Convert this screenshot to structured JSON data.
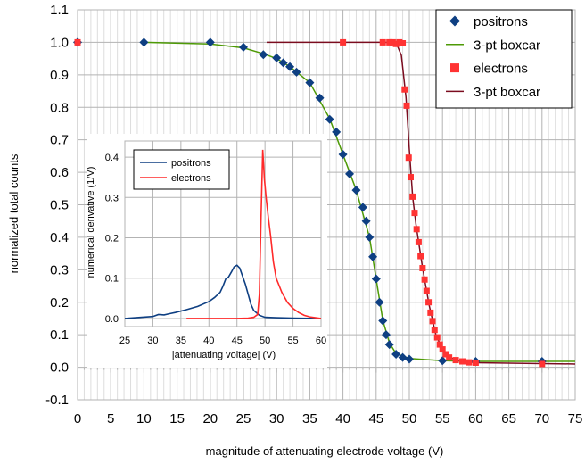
{
  "chart_data": [
    {
      "type": "scatter",
      "xlabel": "magnitude of attenuating electrode voltage (V)",
      "ylabel": "normalized total counts",
      "xlim": [
        0,
        75
      ],
      "ylim": [
        -0.1,
        1.1
      ],
      "xticks": [
        "0",
        "5",
        "10",
        "15",
        "20",
        "25",
        "30",
        "35",
        "40",
        "45",
        "50",
        "55",
        "60",
        "65",
        "70",
        "75"
      ],
      "yticks": [
        "-0.1",
        "0.0",
        "0.1",
        "0.2",
        "0.3",
        "0.4",
        "0.5",
        "0.6",
        "0.7",
        "0.8",
        "0.9",
        "1.0",
        "1.1"
      ],
      "grid": true,
      "legend_position": "top-right",
      "series": [
        {
          "name": "positrons",
          "marker": "diamond",
          "color": "#0e3f82",
          "x": [
            0,
            10,
            20,
            25,
            28,
            30,
            31,
            32,
            33,
            35,
            36.5,
            38,
            39,
            40,
            41,
            42,
            43,
            43.5,
            44,
            44.5,
            45,
            45.5,
            46,
            46.5,
            47,
            48,
            49,
            50,
            55,
            60,
            70
          ],
          "y": [
            1.0,
            1.0,
            1.0,
            0.985,
            0.962,
            0.952,
            0.937,
            0.925,
            0.908,
            0.876,
            0.829,
            0.763,
            0.724,
            0.655,
            0.595,
            0.545,
            0.492,
            0.45,
            0.4,
            0.34,
            0.272,
            0.2,
            0.143,
            0.1,
            0.07,
            0.04,
            0.03,
            0.025,
            0.02,
            0.018,
            0.018
          ]
        },
        {
          "name": "3-pt boxcar",
          "style": "line",
          "color": "#4e9a06",
          "x": [
            10,
            20,
            25,
            28,
            30,
            32,
            35,
            38,
            40,
            42,
            44,
            45,
            46,
            47,
            48,
            50,
            55,
            60,
            75
          ],
          "y": [
            1.0,
            0.995,
            0.983,
            0.965,
            0.95,
            0.925,
            0.876,
            0.765,
            0.655,
            0.545,
            0.4,
            0.272,
            0.145,
            0.075,
            0.042,
            0.027,
            0.02,
            0.018,
            0.018
          ]
        },
        {
          "name": "electrons",
          "marker": "square",
          "color": "#ff3333",
          "x": [
            0,
            40,
            46,
            47,
            47.5,
            48,
            48.5,
            49,
            49.3,
            49.6,
            49.9,
            50.2,
            50.5,
            50.8,
            51.1,
            51.4,
            51.7,
            52,
            52.3,
            52.6,
            52.9,
            53.2,
            53.5,
            53.8,
            54.2,
            54.6,
            55,
            55.5,
            56,
            57,
            58,
            59,
            60,
            70
          ],
          "y": [
            1.0,
            1.0,
            1.0,
            1.0,
            1.0,
            0.995,
            1.0,
            0.997,
            0.855,
            0.805,
            0.645,
            0.585,
            0.525,
            0.475,
            0.425,
            0.385,
            0.342,
            0.305,
            0.27,
            0.235,
            0.2,
            0.168,
            0.142,
            0.115,
            0.092,
            0.07,
            0.055,
            0.04,
            0.03,
            0.022,
            0.018,
            0.015,
            0.014,
            0.01
          ]
        },
        {
          "name": "3-pt boxcar",
          "style": "line",
          "color": "#7b0c1f",
          "x": [
            28.5,
            40,
            46,
            48,
            48.8,
            49.5,
            50,
            50.5,
            51,
            52,
            53,
            54,
            55,
            56,
            57,
            60,
            75
          ],
          "y": [
            1.0,
            1.0,
            1.0,
            0.999,
            0.96,
            0.83,
            0.67,
            0.525,
            0.44,
            0.305,
            0.19,
            0.1,
            0.055,
            0.032,
            0.022,
            0.014,
            0.01
          ]
        }
      ]
    },
    {
      "type": "line",
      "xlabel": "|attenuating voltage| (V)",
      "ylabel": "numerical derivative (1/V)",
      "xlim": [
        25,
        60
      ],
      "ylim": [
        -0.02,
        0.44
      ],
      "xticks": [
        "25",
        "30",
        "35",
        "40",
        "45",
        "50",
        "55",
        "60"
      ],
      "yticks": [
        "0.0",
        "0.1",
        "0.2",
        "0.3",
        "0.4"
      ],
      "grid": true,
      "legend_position": "top-left",
      "series": [
        {
          "name": "positrons",
          "color": "#0e3f82",
          "x": [
            25,
            28,
            30,
            31,
            32,
            33,
            34,
            36,
            38,
            40,
            41,
            42,
            42.5,
            43,
            43.5,
            44,
            44.5,
            45,
            45.5,
            46,
            46.5,
            47,
            47.5,
            48,
            49,
            50,
            52,
            55,
            60
          ],
          "y": [
            0.0,
            0.003,
            0.005,
            0.01,
            0.009,
            0.012,
            0.015,
            0.022,
            0.03,
            0.042,
            0.052,
            0.065,
            0.08,
            0.098,
            0.103,
            0.115,
            0.128,
            0.132,
            0.125,
            0.105,
            0.085,
            0.06,
            0.035,
            0.02,
            0.008,
            0.003,
            0.002,
            0.001,
            0.0
          ]
        },
        {
          "name": "electrons",
          "color": "#ff2a2a",
          "x": [
            36,
            40,
            45,
            47,
            48,
            48.7,
            49,
            49.3,
            49.6,
            49.9,
            50.2,
            50.6,
            51,
            51.5,
            52,
            53,
            54,
            55,
            56,
            57,
            58,
            60
          ],
          "y": [
            0.0,
            0.0,
            0.0,
            0.001,
            0.003,
            0.01,
            0.06,
            0.25,
            0.418,
            0.345,
            0.3,
            0.25,
            0.205,
            0.14,
            0.1,
            0.065,
            0.04,
            0.025,
            0.015,
            0.008,
            0.004,
            0.0
          ]
        }
      ]
    }
  ]
}
